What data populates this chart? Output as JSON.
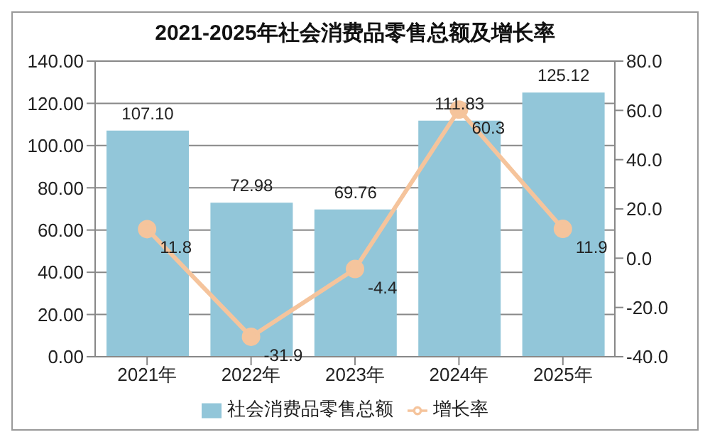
{
  "chart_data": {
    "type": "bar",
    "title": "2021-2025年社会消费品零售总额及增长率",
    "categories": [
      "2021年",
      "2022年",
      "2023年",
      "2024年",
      "2025年"
    ],
    "series": [
      {
        "name": "社会消费品零售总额",
        "color": "#92c6d9",
        "values": [
          107.1,
          72.98,
          69.76,
          111.83,
          125.12
        ],
        "value_labels": [
          "107.10",
          "72.98",
          "69.76",
          "111.83",
          "125.12"
        ]
      },
      {
        "name": "增长率",
        "type": "line",
        "axis": "y2",
        "color": "#f5c49c",
        "marker": "circle",
        "values": [
          11.8,
          -31.9,
          -4.4,
          60.3,
          11.9
        ],
        "value_labels": [
          "11.8",
          "-31.9",
          "-4.4",
          "60.3",
          "11.9"
        ]
      }
    ],
    "ylim": [
      0,
      140
    ],
    "yticks": [
      {
        "value": 0,
        "label": "0.00"
      },
      {
        "value": 20,
        "label": "20.00"
      },
      {
        "value": 40,
        "label": "40.00"
      },
      {
        "value": 60,
        "label": "60.00"
      },
      {
        "value": 80,
        "label": "80.00"
      },
      {
        "value": 100,
        "label": "100.00"
      },
      {
        "value": 120,
        "label": "120.00"
      },
      {
        "value": 140,
        "label": "140.00"
      }
    ],
    "y2lim": [
      -40,
      80
    ],
    "y2ticks": [
      {
        "value": -40,
        "label": "-40.0"
      },
      {
        "value": -20,
        "label": "-20.0"
      },
      {
        "value": 0,
        "label": "0.0"
      },
      {
        "value": 20,
        "label": "20.0"
      },
      {
        "value": 40,
        "label": "40.0"
      },
      {
        "value": 60,
        "label": "60.0"
      },
      {
        "value": 80,
        "label": "80.0"
      }
    ],
    "grid": "y",
    "legend": "bottom"
  }
}
